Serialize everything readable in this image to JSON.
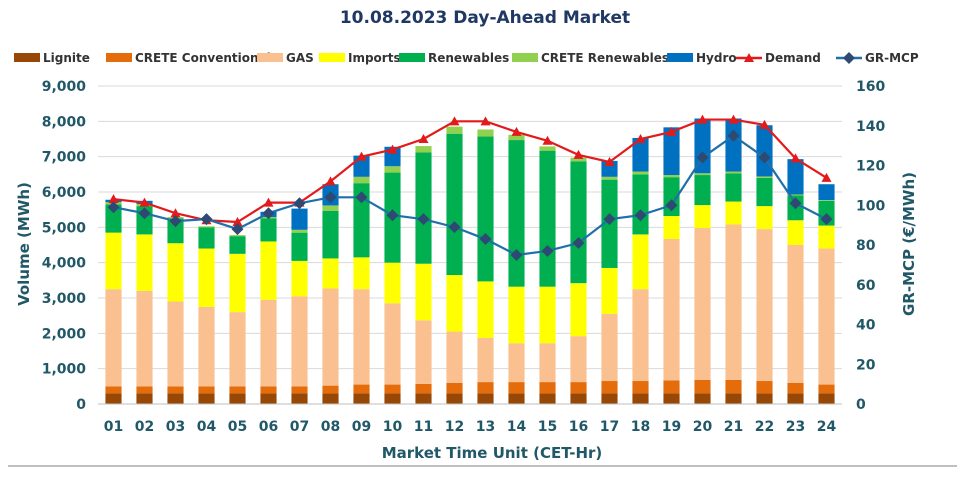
{
  "chart_data": {
    "type": "stacked-bar-with-lines",
    "title": "10.08.2023  Day-Ahead Market",
    "xlabel": "Market Time Unit (CET-Hr)",
    "ylabel": "Volume (MWh)",
    "y2label": "GR-MCP (€/MWh)",
    "ylim": [
      0,
      9000
    ],
    "y2lim": [
      0,
      160
    ],
    "yticks": [
      "0",
      "1,000",
      "2,000",
      "3,000",
      "4,000",
      "5,000",
      "6,000",
      "7,000",
      "8,000",
      "9,000"
    ],
    "y2ticks": [
      "0",
      "20",
      "40",
      "60",
      "80",
      "100",
      "120",
      "140",
      "160"
    ],
    "categories": [
      "01",
      "02",
      "03",
      "04",
      "05",
      "06",
      "07",
      "08",
      "09",
      "10",
      "11",
      "12",
      "13",
      "14",
      "15",
      "16",
      "17",
      "18",
      "19",
      "20",
      "21",
      "22",
      "23",
      "24"
    ],
    "grid": true,
    "legend_position": "top",
    "series": [
      {
        "name": "Lignite",
        "kind": "bar",
        "color": "#974806",
        "values": [
          300,
          300,
          300,
          300,
          300,
          300,
          300,
          300,
          300,
          300,
          300,
          300,
          300,
          300,
          300,
          300,
          300,
          300,
          300,
          300,
          300,
          300,
          300,
          300
        ]
      },
      {
        "name": "CRETE Conventional",
        "kind": "bar",
        "color": "#E46C0A",
        "values": [
          200,
          200,
          200,
          200,
          200,
          200,
          200,
          220,
          250,
          250,
          270,
          300,
          320,
          320,
          320,
          320,
          350,
          350,
          370,
          380,
          380,
          350,
          300,
          250
        ]
      },
      {
        "name": "GAS",
        "kind": "bar",
        "color": "#FAC090",
        "values": [
          2750,
          2700,
          2400,
          2250,
          2100,
          2450,
          2550,
          2750,
          2700,
          2300,
          1800,
          1450,
          1250,
          1100,
          1100,
          1300,
          1900,
          2600,
          4000,
          4300,
          4400,
          4300,
          3900,
          3850
        ]
      },
      {
        "name": "Imports",
        "kind": "bar",
        "color": "#FFFF00",
        "values": [
          1600,
          1600,
          1650,
          1650,
          1650,
          1650,
          1000,
          850,
          900,
          1150,
          1600,
          1600,
          1600,
          1600,
          1600,
          1500,
          1300,
          1550,
          650,
          650,
          650,
          650,
          700,
          650
        ]
      },
      {
        "name": "Renewables",
        "kind": "bar",
        "color": "#00B050",
        "values": [
          800,
          800,
          700,
          600,
          500,
          650,
          800,
          1350,
          2100,
          2550,
          3150,
          4000,
          4100,
          4150,
          3850,
          3450,
          2500,
          1700,
          1100,
          850,
          800,
          800,
          700,
          700
        ]
      },
      {
        "name": "CRETE Renewables",
        "kind": "bar",
        "color": "#92D050",
        "values": [
          60,
          60,
          40,
          30,
          30,
          40,
          80,
          150,
          180,
          180,
          180,
          200,
          200,
          150,
          120,
          100,
          80,
          80,
          60,
          50,
          50,
          40,
          30,
          20
        ]
      },
      {
        "name": "Hydro",
        "kind": "bar",
        "color": "#0070C0",
        "values": [
          70,
          90,
          0,
          0,
          0,
          150,
          600,
          600,
          600,
          550,
          0,
          0,
          0,
          0,
          0,
          0,
          450,
          950,
          1350,
          1550,
          1500,
          1450,
          1000,
          450
        ]
      },
      {
        "name": "Demand",
        "kind": "line",
        "color": "#E31A1C",
        "marker": "triangle",
        "axis": "left",
        "values": [
          5800,
          5700,
          5400,
          5200,
          5150,
          5700,
          5700,
          6300,
          7000,
          7200,
          7500,
          8000,
          8000,
          7700,
          7450,
          7050,
          6850,
          7500,
          7700,
          8050,
          8050,
          7900,
          6950,
          6400
        ]
      },
      {
        "name": "GR-MCP",
        "kind": "line",
        "color": "#1F6FA8",
        "marker": "diamond",
        "axis": "right",
        "values": [
          99,
          96,
          92,
          93,
          88,
          96,
          101,
          104,
          104,
          95,
          93,
          89,
          83,
          75,
          77,
          81,
          93,
          95,
          100,
          124,
          135,
          124,
          101,
          93
        ]
      }
    ]
  }
}
